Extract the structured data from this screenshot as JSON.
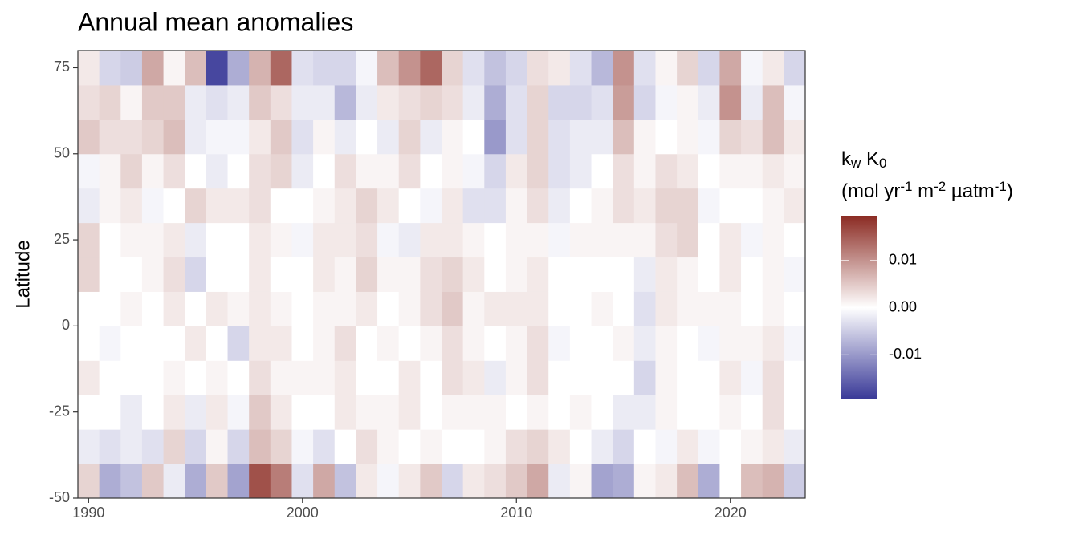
{
  "chart_data": {
    "type": "heatmap",
    "title": "Annual mean anomalies",
    "y_label": "Latitude",
    "x": [
      1990,
      1991,
      1992,
      1993,
      1994,
      1995,
      1996,
      1997,
      1998,
      1999,
      2000,
      2001,
      2002,
      2003,
      2004,
      2005,
      2006,
      2007,
      2008,
      2009,
      2010,
      2011,
      2012,
      2013,
      2014,
      2015,
      2016,
      2017,
      2018,
      2019,
      2020,
      2021,
      2022,
      2023
    ],
    "y": [
      -45,
      -35,
      -25,
      -15,
      -5,
      5,
      15,
      25,
      35,
      45,
      55,
      65,
      75
    ],
    "xlim": [
      1989.5,
      2023.5
    ],
    "ylim": [
      -50,
      80
    ],
    "xticks": [
      1990,
      2000,
      2010,
      2020
    ],
    "yticks": [
      -50,
      -25,
      0,
      25,
      50,
      75
    ],
    "z": [
      [
        0.004,
        -0.002,
        0,
        0.002,
        0,
        0,
        0.004,
        0.004,
        -0.002,
        -0.001,
        0.005,
        0.003,
        0.002
      ],
      [
        -0.008,
        -0.003,
        0,
        0,
        -0.001,
        0,
        0,
        0,
        0.001,
        0.001,
        0.003,
        0.004,
        -0.004
      ],
      [
        -0.006,
        -0.002,
        -0.002,
        0,
        0,
        0.001,
        0,
        0.001,
        0.002,
        0.004,
        0.003,
        0.001,
        -0.005
      ],
      [
        0.005,
        -0.003,
        0,
        0,
        0,
        0,
        0.001,
        0.001,
        -0.001,
        0.001,
        0.004,
        0.005,
        0.008
      ],
      [
        -0.002,
        0.004,
        0.002,
        0.001,
        0,
        0.002,
        0.003,
        0.002,
        0,
        0.003,
        0.006,
        0.005,
        0.001
      ],
      [
        -0.008,
        -0.004,
        -0.002,
        0,
        0.002,
        0,
        -0.004,
        -0.002,
        0.004,
        0,
        -0.002,
        -0.002,
        0.006
      ],
      [
        0.005,
        0.001,
        0.002,
        0.001,
        0,
        0.002,
        0,
        0,
        0.002,
        -0.002,
        -0.001,
        -0.003,
        -0.018
      ],
      [
        -0.009,
        -0.004,
        -0.001,
        0,
        -0.004,
        0.001,
        0,
        0,
        0.002,
        0,
        -0.001,
        -0.002,
        -0.008
      ],
      [
        0.016,
        0.006,
        0.005,
        0.003,
        0.002,
        0.002,
        0.002,
        0.002,
        0.003,
        0.003,
        0.002,
        0.005,
        0.007
      ],
      [
        0.012,
        0.004,
        0.002,
        0.001,
        0.002,
        0.001,
        0,
        0.001,
        0,
        0.004,
        0.005,
        0.003,
        0.014
      ],
      [
        -0.003,
        -0.001,
        0,
        0.001,
        0,
        0,
        0,
        -0.001,
        0,
        -0.002,
        -0.003,
        -0.002,
        -0.003
      ],
      [
        0.008,
        -0.003,
        0,
        0.001,
        0.001,
        0.001,
        0.002,
        0.002,
        0.001,
        0,
        0.001,
        -0.002,
        -0.004
      ],
      [
        -0.006,
        0,
        0.002,
        0.002,
        0.003,
        0.001,
        0.001,
        0.002,
        0.002,
        0.003,
        -0.002,
        -0.007,
        -0.004
      ],
      [
        0.002,
        0.003,
        0.001,
        0,
        0,
        0.002,
        0.004,
        0.003,
        0.004,
        0.001,
        0,
        -0.002,
        -0.001
      ],
      [
        -0.001,
        0.001,
        0.001,
        0,
        0.001,
        0,
        0.001,
        -0.001,
        0.002,
        0.001,
        -0.002,
        0.002,
        0.006
      ],
      [
        0.002,
        0,
        0.002,
        0.002,
        0,
        0.001,
        0.001,
        -0.002,
        0,
        0.003,
        0.004,
        0.003,
        0.01
      ],
      [
        0.005,
        0.001,
        0,
        0,
        0.001,
        0.003,
        0.003,
        0.002,
        -0.001,
        0,
        -0.002,
        0.004,
        0.014
      ],
      [
        -0.004,
        0,
        0.001,
        0.003,
        0.003,
        0.005,
        0.004,
        0.002,
        0.002,
        0.001,
        0.001,
        0.003,
        0.004
      ],
      [
        0.002,
        0,
        0.001,
        0.002,
        0.001,
        0.001,
        0.002,
        0.001,
        -0.003,
        -0.001,
        0,
        -0.002,
        -0.003
      ],
      [
        0.003,
        0.001,
        0.001,
        -0.002,
        0,
        0.002,
        0,
        0,
        -0.003,
        -0.004,
        -0.01,
        -0.008,
        -0.006
      ],
      [
        0.005,
        0.003,
        0,
        0.001,
        0.001,
        0.002,
        0.001,
        0.001,
        0.001,
        0.002,
        -0.003,
        -0.003,
        -0.004
      ],
      [
        0.008,
        0.004,
        0.001,
        0.003,
        0.003,
        0.002,
        0.002,
        0.001,
        0.003,
        0.004,
        0.004,
        0.004,
        0.003
      ],
      [
        -0.002,
        0.002,
        0,
        0,
        -0.001,
        0,
        0,
        -0.001,
        -0.002,
        -0.003,
        -0.003,
        -0.004,
        0.002
      ],
      [
        0.001,
        0,
        0.001,
        0,
        0,
        0,
        0,
        0.001,
        0,
        -0.002,
        -0.002,
        -0.004,
        -0.003
      ],
      [
        -0.009,
        -0.002,
        0,
        0,
        0,
        0.001,
        0,
        0.001,
        0.001,
        0,
        -0.002,
        -0.003,
        -0.007
      ],
      [
        -0.008,
        -0.004,
        -0.002,
        0,
        0.001,
        0,
        0,
        0.001,
        0.003,
        0.003,
        0.006,
        0.009,
        0.01
      ],
      [
        0.001,
        0,
        -0.002,
        -0.004,
        -0.002,
        -0.003,
        -0.002,
        0.001,
        0.002,
        0.001,
        0.001,
        -0.004,
        -0.003
      ],
      [
        0.002,
        -0.001,
        0.001,
        0.001,
        0.001,
        0.002,
        0.002,
        0.003,
        0.004,
        0.003,
        0,
        -0.001,
        0.001
      ],
      [
        0.006,
        0.002,
        0,
        0,
        0,
        0.001,
        0.001,
        0.004,
        0.004,
        0.002,
        0.001,
        0.001,
        0.004
      ],
      [
        -0.008,
        -0.001,
        0,
        0,
        -0.001,
        0.001,
        0,
        0,
        -0.001,
        0,
        -0.001,
        -0.002,
        -0.004
      ],
      [
        0,
        0,
        0.001,
        0.002,
        0.001,
        0.001,
        0.002,
        0.002,
        0,
        0.001,
        0.004,
        0.01,
        0.008
      ],
      [
        0.006,
        0.001,
        0,
        -0.001,
        0.001,
        0,
        0,
        -0.001,
        0,
        0.001,
        0.003,
        -0.002,
        -0.001
      ],
      [
        0.007,
        0.002,
        0.003,
        0.003,
        0.002,
        0.001,
        0.001,
        0.001,
        0.001,
        0.002,
        0.006,
        0.006,
        0.002
      ],
      [
        -0.005,
        -0.002,
        0,
        0,
        -0.001,
        0,
        -0.001,
        0,
        0.002,
        0.001,
        0.002,
        -0.001,
        -0.004
      ]
    ],
    "colorbar": {
      "title_line1": [
        {
          "text": "k"
        },
        {
          "text": "w",
          "sub": true
        },
        {
          "text": " K"
        },
        {
          "text": "0",
          "sub": true
        }
      ],
      "title_line2": [
        {
          "text": "(mol yr"
        },
        {
          "text": "-1",
          "sup": true
        },
        {
          "text": " m"
        },
        {
          "text": "-2",
          "sup": true
        },
        {
          "text": " µatm"
        },
        {
          "text": "-1",
          "sup": true
        },
        {
          "text": ")"
        }
      ],
      "lim": [
        -0.0193,
        0.0195
      ],
      "ticks": [
        -0.01,
        {
          "value": 0,
          "label": "0.00"
        },
        0.01
      ],
      "colors": [
        "#3a3a98",
        "#ffffff",
        "#8b2b23"
      ]
    }
  }
}
